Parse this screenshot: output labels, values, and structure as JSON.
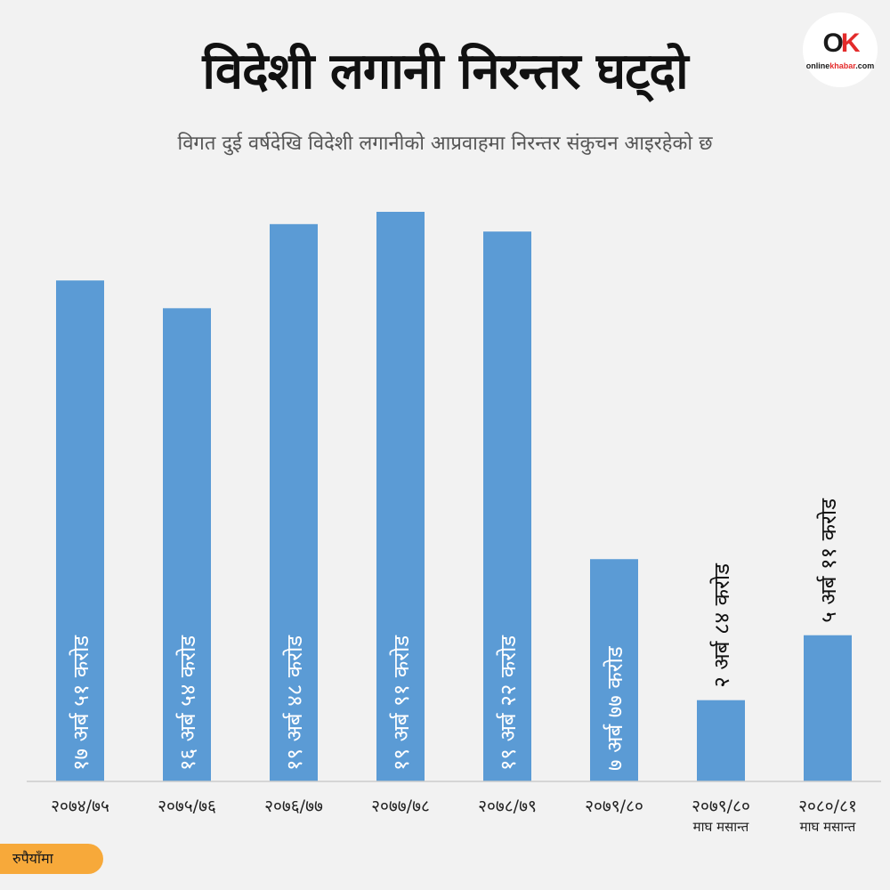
{
  "header": {
    "title": "विदेशी लगानी निरन्तर घट्दो",
    "subtitle": "विगत दुई वर्षदेखि विदेशी लगानीको आप्रवाहमा निरन्तर संकुचन आइरहेको छ"
  },
  "logo": {
    "mark_o": "O",
    "mark_k": "K",
    "text_online": "online",
    "text_khabar": "khabar",
    "text_com": ".com"
  },
  "unit_label": "रुपैयाँमा",
  "colors": {
    "bar": "#5b9bd5",
    "background": "#f2f2f2",
    "badge": "#f7a93a"
  },
  "chart_data": {
    "type": "bar",
    "unit": "अर्ब रुपैयाँ",
    "categories": [
      [
        "२०७४/७५",
        ""
      ],
      [
        "२०७५/७६",
        ""
      ],
      [
        "२०७६/७७",
        ""
      ],
      [
        "२०७७/७८",
        ""
      ],
      [
        "२०७८/७९",
        ""
      ],
      [
        "२०७९/८०",
        ""
      ],
      [
        "२०७९/८०",
        "माघ मसान्त"
      ],
      [
        "२०८०/८१",
        "माघ मसान्त"
      ]
    ],
    "values": [
      17.51,
      16.54,
      19.48,
      19.91,
      19.22,
      7.77,
      2.84,
      5.11
    ],
    "data_labels": [
      "१७ अर्ब ५१ करोड",
      "१६ अर्ब ५४ करोड",
      "१९ अर्ब ४८ करोड",
      "१९ अर्ब ९१ करोड",
      "१९ अर्ब २२ करोड",
      "७ अर्ब ७७ करोड",
      "२ अर्ब ८४ करोड",
      "५ अर्ब ११ करोड"
    ],
    "label_inside": [
      true,
      true,
      true,
      true,
      true,
      true,
      false,
      false
    ],
    "ylim": [
      0,
      20
    ]
  }
}
